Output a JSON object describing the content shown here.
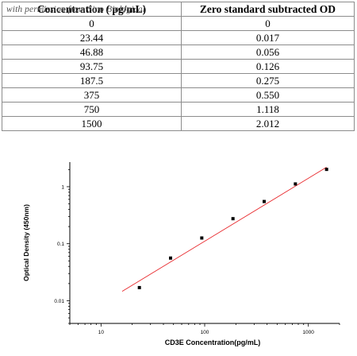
{
  "table": {
    "headers": [
      "Concentration ( pg/mL)",
      "Zero standard subtracted OD"
    ],
    "rows": [
      [
        "0",
        "0"
      ],
      [
        "23.44",
        "0.017"
      ],
      [
        "46.88",
        "0.056"
      ],
      [
        "93.75",
        "0.126"
      ],
      [
        "187.5",
        "0.275"
      ],
      [
        "375",
        "0.550"
      ],
      [
        "750",
        "1.118"
      ],
      [
        "1500",
        "2.012"
      ]
    ]
  },
  "watermark": "with permission from Sino Biological",
  "chart_data": {
    "type": "scatter",
    "xlabel": "CD3E   Concentration(pg/mL)",
    "ylabel": "Optical Density (450nm)",
    "x_scale": "log",
    "y_scale": "log",
    "xlim": [
      5,
      2000
    ],
    "ylim": [
      0.004,
      2.7
    ],
    "x_ticks": [
      10,
      100,
      1000
    ],
    "x_tick_labels": [
      "10",
      "100",
      "1000"
    ],
    "y_ticks": [
      0.01,
      0.1,
      1
    ],
    "y_tick_labels": [
      "0.01",
      "0.1",
      "1"
    ],
    "grid": false,
    "points": {
      "x": [
        23.44,
        46.88,
        93.75,
        187.5,
        375,
        750,
        1500
      ],
      "y": [
        0.017,
        0.056,
        0.126,
        0.275,
        0.55,
        1.118,
        2.012
      ]
    },
    "fit_line": {
      "x": [
        16,
        1500
      ],
      "y": [
        0.0146,
        2.2
      ],
      "color": "#e8262a"
    },
    "marker_color": "#000000"
  }
}
